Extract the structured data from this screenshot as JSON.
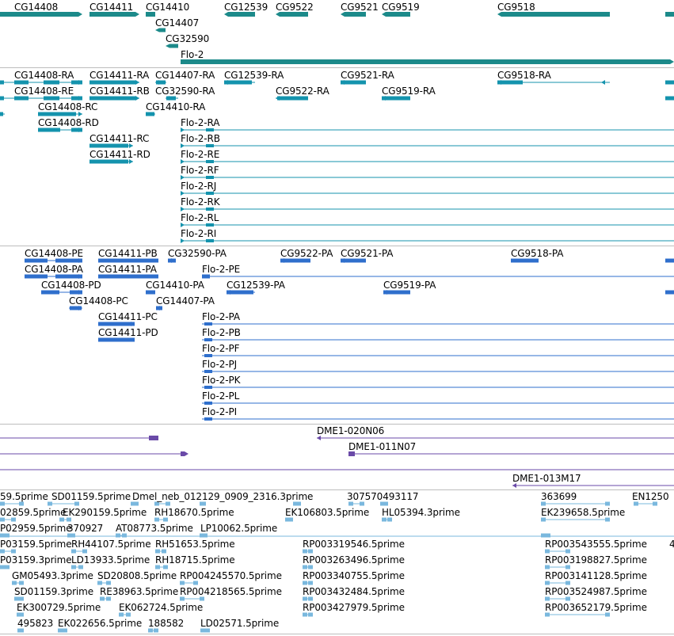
{
  "colors": {
    "gene": "#1c8a8a",
    "transcript": "#1493ad",
    "protein": "#2f6fcc",
    "clone": "#6a4aa8",
    "est": "#7ab8de",
    "separator": "#bdbdbd"
  },
  "tracks": {
    "genes": [
      "CG14408",
      "CG14411",
      "CG14410",
      "CG14407",
      "CG32590",
      "Flo-2",
      "CG12539",
      "CG9522",
      "CG9521",
      "CG9519",
      "CG9518"
    ],
    "transcripts": [
      "CG14408-RA",
      "CG14408-RE",
      "CG14408-RC",
      "CG14408-RD",
      "CG14411-RA",
      "CG14411-RB",
      "CG14411-RC",
      "CG14411-RD",
      "CG14407-RA",
      "CG32590-RA",
      "CG14410-RA",
      "CG12539-RA",
      "CG9522-RA",
      "CG9521-RA",
      "CG9519-RA",
      "CG9518-RA",
      "Flo-2-RA",
      "Flo-2-RB",
      "Flo-2-RE",
      "Flo-2-RF",
      "Flo-2-RJ",
      "Flo-2-RK",
      "Flo-2-RL",
      "Flo-2-RI"
    ],
    "proteins": [
      "CG14408-PE",
      "CG14408-PA",
      "CG14408-PD",
      "CG14408-PC",
      "CG14411-PB",
      "CG14411-PA",
      "CG14411-PC",
      "CG14411-PD",
      "CG32590-PA",
      "CG14410-PA",
      "CG14407-PA",
      "Flo-2-PE",
      "CG12539-PA",
      "CG9522-PA",
      "CG9521-PA",
      "CG9519-PA",
      "CG9518-PA",
      "Flo-2-PA",
      "Flo-2-PB",
      "Flo-2-PF",
      "Flo-2-PJ",
      "Flo-2-PK",
      "Flo-2-PL",
      "Flo-2-PI"
    ],
    "clones": [
      "DME1-020N06",
      "DME1-011N07",
      "DME1-013M17"
    ],
    "ests": [
      "59.5prime",
      "SD01159.5prime",
      "Dmel_neb_012129_0909_2316.3prime",
      "307570493117",
      "363699",
      "EN1250",
      "02859.5prime",
      "EK290159.5prime",
      "RH18670.5prime",
      "EK106803.5prime",
      "HL05394.3prime",
      "EK239658.5prime",
      "P02959.5prime",
      "370927",
      "AT08773.5prime",
      "LP10062.5prime",
      "P03159.5prime",
      "RH44107.5prime",
      "RH51653.5prime",
      "RP003319546.5prime",
      "RP003543555.5prime",
      "4",
      "P03159.3prime",
      "LD13933.5prime",
      "RH18715.5prime",
      "RP003263496.5prime",
      "RP003198827.5prime",
      "GM05493.3prime",
      "SD20808.5prime",
      "RP004245570.5prime",
      "RP003340755.5prime",
      "RP003141128.5prime",
      "SD01159.3prime",
      "RE38963.5prime",
      "RP004218565.5prime",
      "RP003432484.5prime",
      "RP003524987.5prime",
      "EK300729.5prime",
      "EK062724.5prime",
      "RP003427979.5prime",
      "RP003652179.5prime",
      "495823",
      "EK022656.5prime",
      "188582",
      "LD02571.5prime"
    ]
  }
}
